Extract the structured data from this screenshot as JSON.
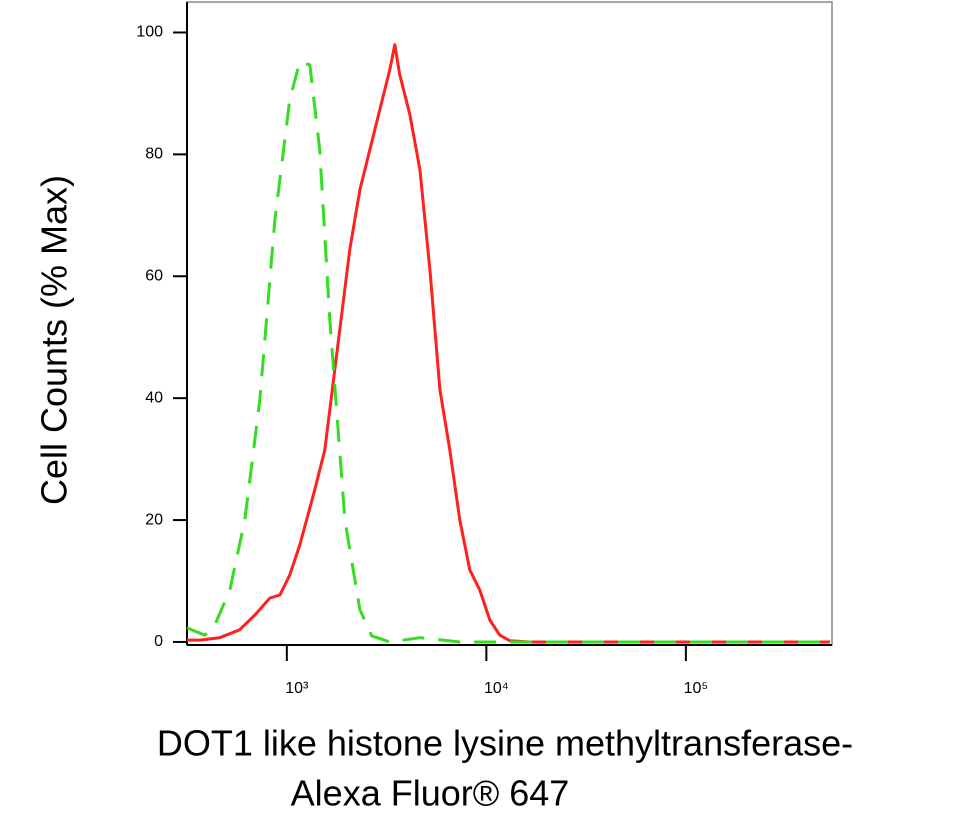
{
  "chart_data": {
    "type": "line",
    "y_label": "Cell Counts (% Max)",
    "x_label": [
      "DOT1 like histone lysine methyltransferase-",
      "Alexa Fluor® 647"
    ],
    "xscale": "log",
    "xlim": [
      316,
      540000
    ],
    "xticks": [
      {
        "value": 1000,
        "label": "10³"
      },
      {
        "value": 10000,
        "label": "10⁴"
      },
      {
        "value": 100000,
        "label": "10⁵"
      }
    ],
    "ylim": [
      -0.5,
      105
    ],
    "yticks": [
      0,
      20,
      40,
      60,
      80,
      100
    ],
    "series": [
      {
        "color": "#ff2020",
        "dash": false,
        "x": [
          316,
          366,
          461,
          580,
          691,
          822,
          923,
          1035,
          1161,
          1381,
          1550,
          1740,
          2069,
          2323,
          2607,
          2926,
          3281,
          3475,
          3681,
          4137,
          4645,
          5212,
          5848,
          6561,
          7362,
          8260,
          9270,
          10410,
          11680,
          13110,
          16510,
          37060,
          117500,
          527000
        ],
        "values": [
          0.3,
          0.3,
          0.7,
          2.0,
          4.4,
          7.2,
          7.7,
          11.0,
          15.9,
          25.0,
          31.5,
          44.7,
          64.4,
          74.2,
          80.8,
          87.4,
          93.9,
          98.0,
          93.1,
          86.5,
          77.5,
          61.1,
          41.4,
          31.5,
          20.0,
          11.8,
          8.5,
          3.6,
          1.1,
          0.2,
          0,
          0,
          0,
          0
        ]
      },
      {
        "color": "#33dd22",
        "dash": true,
        "x": [
          316,
          388,
          436,
          518,
          616,
          732,
          871,
          1035,
          1161,
          1304,
          1462,
          1643,
          1954,
          2323,
          2667,
          3281,
          4645,
          7362,
          14720,
          37060,
          117500,
          527000
        ],
        "values": [
          2.3,
          1.1,
          2.8,
          8.5,
          20.0,
          39.7,
          69.3,
          89.0,
          95.2,
          94.7,
          80.8,
          52.9,
          20.0,
          5.3,
          1.0,
          0,
          0.7,
          0,
          0,
          0,
          0,
          0
        ]
      }
    ]
  }
}
